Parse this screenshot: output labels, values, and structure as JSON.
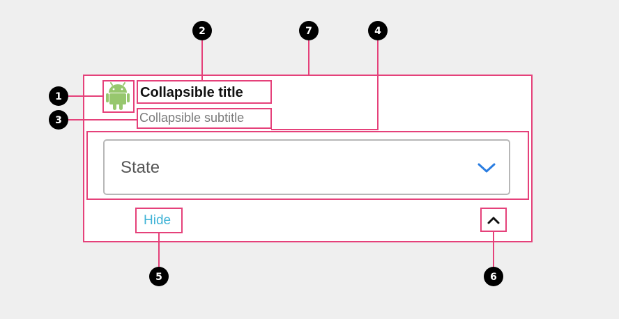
{
  "card": {
    "title": "Collapsible title",
    "subtitle": "Collapsible subtitle",
    "dropdown_label": "State",
    "hide_label": "Hide",
    "icons": {
      "leading": "android-icon",
      "dropdown": "chevron-down-icon",
      "collapse": "chevron-up-icon"
    }
  },
  "markers": [
    "1",
    "2",
    "3",
    "4",
    "5",
    "6",
    "7"
  ],
  "colors": {
    "highlight": "#e5417a",
    "marker_fill": "#000000",
    "android_green": "#97c76e",
    "chevron_blue": "#2a7de1",
    "link_cyan": "#3fb3d6"
  }
}
